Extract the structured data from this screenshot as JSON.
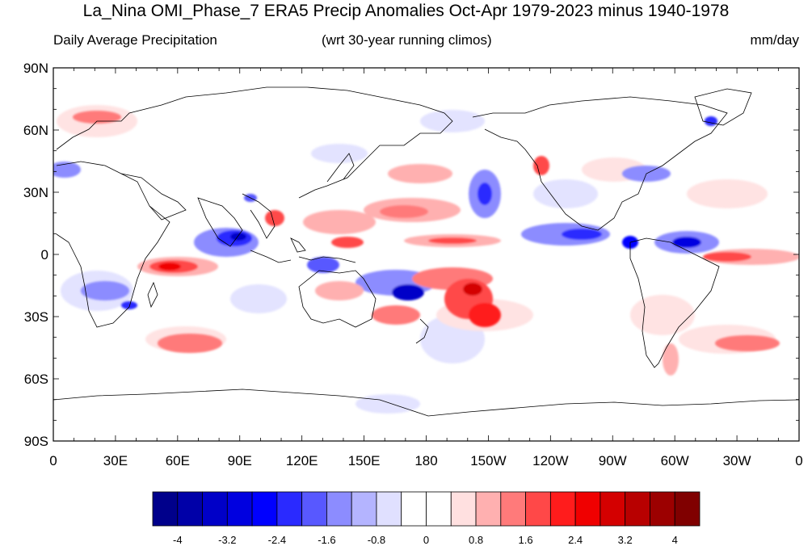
{
  "header": {
    "title": "La_Nina OMI_Phase_7 ERA5 Precip Anomalies Oct-Apr 1979-2023 minus 1940-1978",
    "subtitle_left": "Daily Average Precipitation",
    "subtitle_center": "(wrt 30-year running climos)",
    "subtitle_right": "mm/day"
  },
  "axes": {
    "lat_labels": [
      "90N",
      "60N",
      "30N",
      "0",
      "30S",
      "60S",
      "90S"
    ],
    "lon_labels": [
      "0",
      "30E",
      "60E",
      "90E",
      "120E",
      "150E",
      "180",
      "150W",
      "120W",
      "90W",
      "60W",
      "30W",
      "0"
    ]
  },
  "colorbar": {
    "colors": [
      "#00008b",
      "#0000a8",
      "#0000c8",
      "#0000e0",
      "#0000ff",
      "#2a2aff",
      "#5858ff",
      "#8c8cff",
      "#b4b4ff",
      "#e0e0ff",
      "#ffffff",
      "#ffffff",
      "#ffe0e0",
      "#ffb0b0",
      "#ff7a7a",
      "#ff4848",
      "#ff1c1c",
      "#f00000",
      "#d40000",
      "#b80000",
      "#9c0000",
      "#800000"
    ],
    "labels": [
      "-4",
      "-3.2",
      "-2.4",
      "-1.6",
      "-0.8",
      "0",
      "0.8",
      "1.6",
      "2.4",
      "3.2",
      "4"
    ]
  }
}
